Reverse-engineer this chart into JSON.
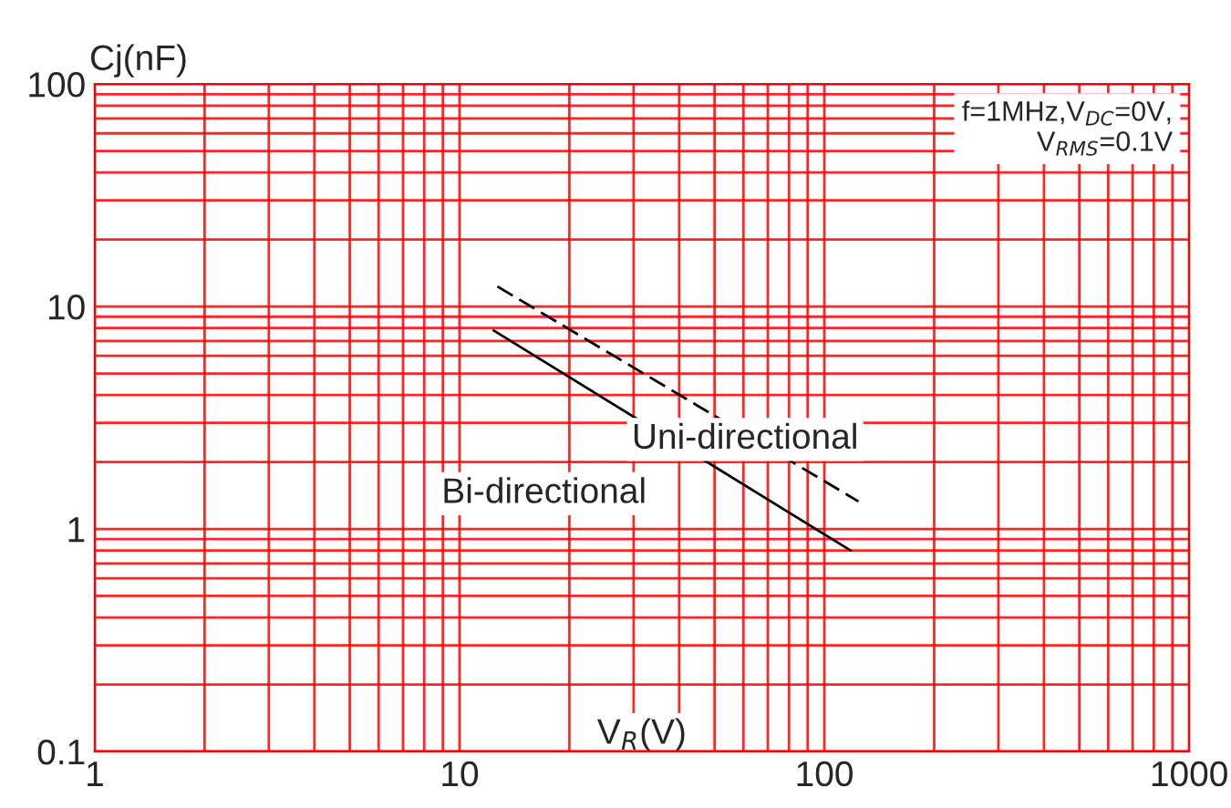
{
  "chart_data": {
    "type": "line",
    "xlabel": "V$_{R}$(V)",
    "ylabel": "Cj(nF)",
    "log": "xy",
    "xlim": [
      1,
      1000
    ],
    "ylim": [
      0.1,
      100
    ],
    "xticks": [
      1,
      10,
      100,
      1000
    ],
    "yticks": [
      0.1,
      1,
      10,
      100
    ],
    "grid": true,
    "legend": false,
    "annotations": [
      "f=1MHz,V$_{DC}$=0V,\nV$_{RMS}$=0.1V"
    ],
    "series": [
      {
        "name": "Uni-directional",
        "color": "#000000",
        "line_style": "dashed",
        "x": [
          12.7,
          124
        ],
        "values": [
          12.3,
          1.33
        ]
      },
      {
        "name": "Bi-directional",
        "color": "#000000",
        "line_style": "solid",
        "x": [
          12.4,
          118
        ],
        "values": [
          7.8,
          0.8
        ]
      }
    ]
  }
}
